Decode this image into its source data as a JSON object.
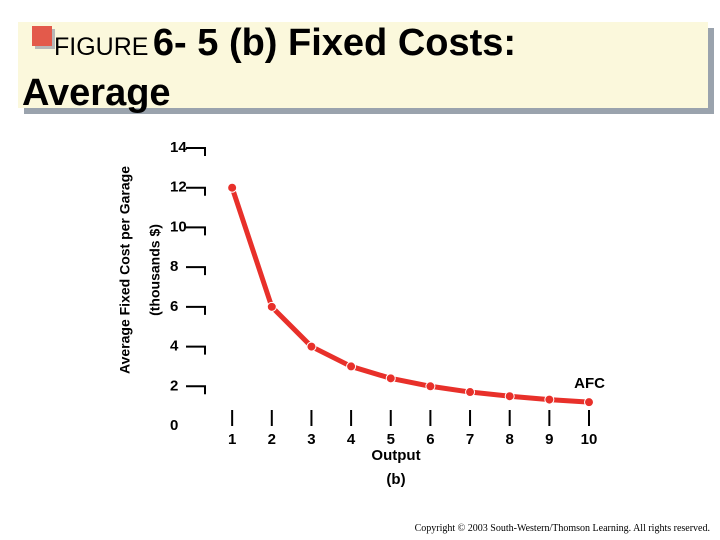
{
  "chart_data": {
    "type": "line",
    "figure_label": "FIGURE",
    "title": "6- 5 (b) Fixed Costs: Average",
    "y_label": "Average Fixed Cost per Garage",
    "y_label_unit": "(thousands $)",
    "x_label": "Output",
    "x_sublabel": "(b)",
    "x": [
      1,
      2,
      3,
      4,
      5,
      6,
      7,
      8,
      9,
      10
    ],
    "series": [
      {
        "name": "AFC",
        "color": "#e8302a",
        "values": [
          12,
          6,
          4,
          3,
          2.4,
          2,
          1.71,
          1.5,
          1.33,
          1.2
        ]
      }
    ],
    "xlim": [
      0,
      10
    ],
    "xticks": [
      1,
      2,
      3,
      4,
      5,
      6,
      7,
      8,
      9,
      10
    ],
    "ylim": [
      0,
      14
    ],
    "yticks": [
      0,
      2,
      4,
      6,
      8,
      10,
      12,
      14
    ],
    "copyright": "Copyright © 2003 South-Western/Thomson Learning. All rights reserved."
  }
}
